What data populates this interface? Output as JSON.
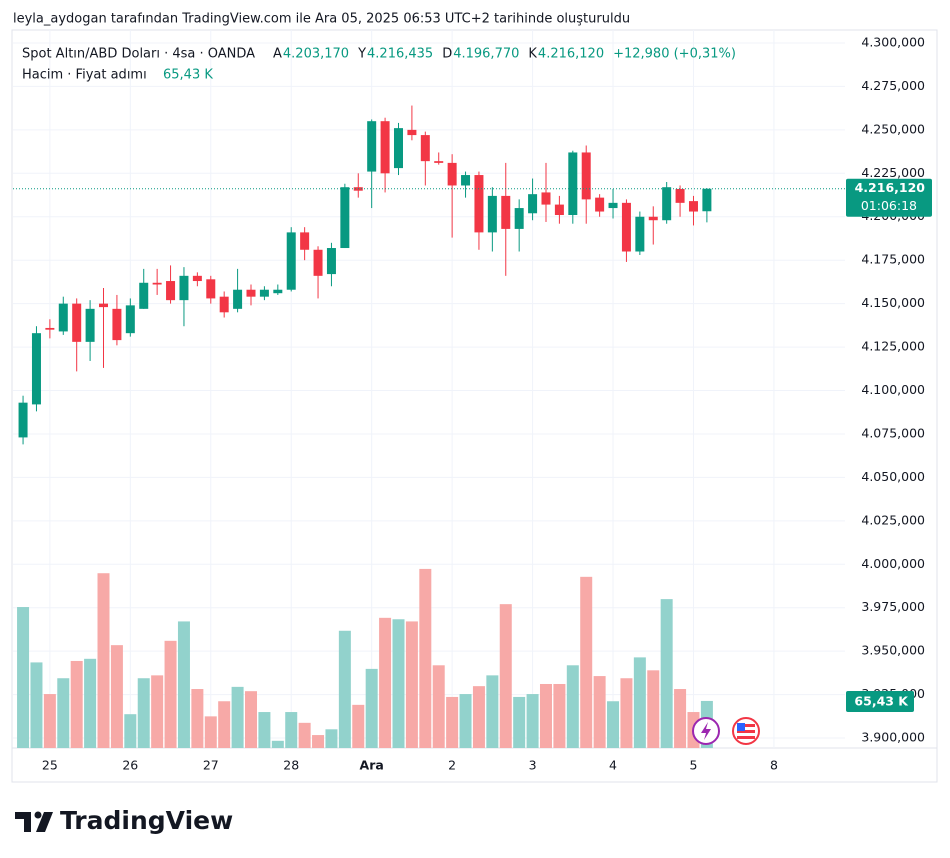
{
  "header": {
    "attribution": "leyla_aydogan tarafından TradingView.com ile Ara 05, 2025 06:53 UTC+2 tarihinde oluşturuldu"
  },
  "legend": {
    "symbol": "Spot Altın/ABD Doları · 4sa · OANDA",
    "ohlc": [
      {
        "key": "A",
        "value": "4.203,170"
      },
      {
        "key": "Y",
        "value": "4.216,435"
      },
      {
        "key": "D",
        "value": "4.196,770"
      },
      {
        "key": "K",
        "value": "4.216,120"
      }
    ],
    "change": "+12,980 (+0,31%)",
    "volume_title": "Hacim · Fiyat adımı",
    "volume_value": "65,43 K"
  },
  "price_label": {
    "price": "4.216,120",
    "countdown": "01:06:18"
  },
  "brand": "TradingView",
  "chart_data": {
    "type": "candlestick",
    "up_color": "#089981",
    "down_color": "#f23645",
    "volume_up_color": "#92d2cc",
    "volume_down_color": "#f7a9a7",
    "grid": true,
    "xlim": [
      -0.75,
      61.3
    ],
    "xticks": [
      {
        "value": 2,
        "label": "25"
      },
      {
        "value": 8,
        "label": "26"
      },
      {
        "value": 14,
        "label": "27"
      },
      {
        "value": 20,
        "label": "28"
      },
      {
        "value": 26,
        "label": "Ara"
      },
      {
        "value": 32,
        "label": "2"
      },
      {
        "value": 38,
        "label": "3"
      },
      {
        "value": 44,
        "label": "4"
      },
      {
        "value": 50,
        "label": "5"
      },
      {
        "value": 56,
        "label": "8"
      }
    ],
    "ylim": [
      3894.25,
      4307.48
    ],
    "yticks": [
      {
        "value": 3900,
        "label": "3.900,000"
      },
      {
        "value": 3925,
        "label": "3.925,000"
      },
      {
        "value": 3950,
        "label": "3.950,000"
      },
      {
        "value": 3975,
        "label": "3.975,000"
      },
      {
        "value": 4000,
        "label": "4.000,000"
      },
      {
        "value": 4025,
        "label": "4.025,000"
      },
      {
        "value": 4050,
        "label": "4.050,000"
      },
      {
        "value": 4075,
        "label": "4.075,000"
      },
      {
        "value": 4100,
        "label": "4.100,000"
      },
      {
        "value": 4125,
        "label": "4.125,000"
      },
      {
        "value": 4150,
        "label": "4.150,000"
      },
      {
        "value": 4175,
        "label": "4.175,000"
      },
      {
        "value": 4200,
        "label": "4.200,000"
      },
      {
        "value": 4225,
        "label": "4.225,000"
      },
      {
        "value": 4250,
        "label": "4.250,000"
      },
      {
        "value": 4275,
        "label": "4.275,000"
      },
      {
        "value": 4300,
        "label": "4.300,000"
      }
    ],
    "volume_lim": [
      0,
      260
    ],
    "open": [
      4073,
      4092,
      4136,
      4134,
      4150,
      4128,
      4150,
      4147,
      4133,
      4147,
      4162,
      4163,
      4152,
      4166,
      4164,
      4154,
      4147,
      4158,
      4154,
      4156,
      4158,
      4191,
      4181,
      4167,
      4182,
      4217,
      4226,
      4255,
      4228,
      4250,
      4247,
      4232,
      4231,
      4218,
      4224,
      4191,
      4212,
      4193,
      4202,
      4214,
      4207,
      4201,
      4237,
      4211,
      4205,
      4208,
      4180,
      4200,
      4198,
      4216,
      4209,
      4203.17
    ],
    "high": [
      4097,
      4137,
      4141,
      4154,
      4153,
      4152,
      4159,
      4155,
      4153,
      4170,
      4170,
      4172,
      4171,
      4168,
      4166,
      4157,
      4170,
      4161,
      4160,
      4161,
      4194,
      4194,
      4183,
      4185,
      4219,
      4225,
      4256,
      4257,
      4254,
      4264,
      4249,
      4237,
      4236,
      4226,
      4226,
      4217,
      4231,
      4210,
      4222,
      4231,
      4212,
      4238,
      4241,
      4213,
      4216,
      4210,
      4203,
      4206,
      4220,
      4218,
      4212,
      4216.435
    ],
    "low": [
      4069,
      4088,
      4130,
      4132,
      4111,
      4117,
      4113,
      4126,
      4131,
      4147,
      4155,
      4150,
      4137,
      4160,
      4150,
      4142,
      4145,
      4149,
      4152,
      4155,
      4157,
      4175,
      4153,
      4160,
      4182,
      4211,
      4205,
      4214,
      4224,
      4244,
      4218,
      4230,
      4188,
      4211,
      4181,
      4180,
      4166,
      4180,
      4198,
      4197,
      4196,
      4196,
      4196,
      4200,
      4199,
      4174,
      4178,
      4184,
      4196,
      4200,
      4195,
      4196.77
    ],
    "close": [
      4093,
      4133,
      4135,
      4150,
      4128,
      4147,
      4148,
      4129,
      4149,
      4162,
      4161,
      4152,
      4166,
      4163,
      4153,
      4145,
      4158,
      4154,
      4158,
      4158,
      4191,
      4181,
      4166,
      4182,
      4217,
      4215,
      4255,
      4225,
      4251,
      4247,
      4232,
      4231,
      4218,
      4224,
      4191,
      4212,
      4193,
      4205,
      4213,
      4207,
      4201,
      4237,
      4210,
      4203,
      4208,
      4180,
      4200,
      4198,
      4217,
      4208,
      4203,
      4216.12
    ],
    "volume": [
      196,
      119,
      75,
      97,
      121,
      124,
      243,
      143,
      47,
      97,
      101,
      149,
      176,
      82,
      44,
      65,
      85,
      79,
      50,
      10,
      50,
      35,
      18,
      26,
      163,
      60,
      110,
      181,
      179,
      176,
      249,
      115,
      71,
      75,
      86,
      101,
      200,
      71,
      75,
      89,
      89,
      115,
      238,
      100,
      65,
      97,
      126,
      108,
      207,
      82,
      50,
      65.43
    ]
  }
}
